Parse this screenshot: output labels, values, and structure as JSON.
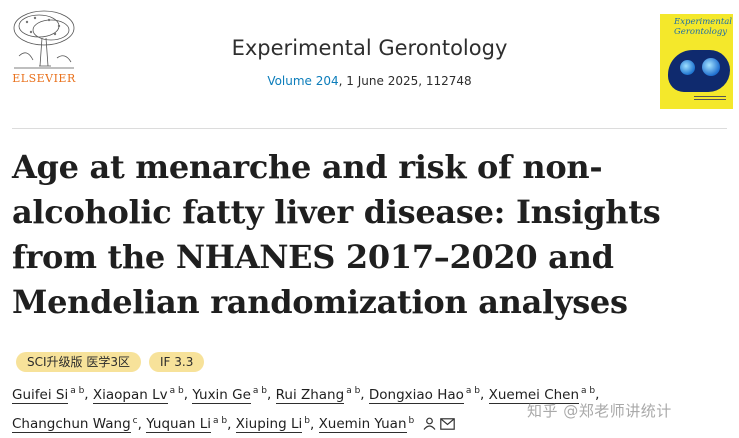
{
  "publisher": {
    "name": "ELSEVIER"
  },
  "journal": {
    "title": "Experimental Gerontology",
    "volume_label": "Volume 204",
    "issue_info": ", 1 June 2025, 112748"
  },
  "cover": {
    "title_line1": "Experimental",
    "title_line2": "Gerontology"
  },
  "article": {
    "title": "Age at menarche and risk of non-alcoholic fatty liver disease: Insights from the NHANES 2017–2020 and Mendelian randomization analyses"
  },
  "badges": [
    "SCI升级版 医学3区",
    "IF 3.3"
  ],
  "authors": [
    {
      "name": "Guifei Si",
      "aff": "a b"
    },
    {
      "name": "Xiaopan Lv",
      "aff": "a b"
    },
    {
      "name": "Yuxin Ge",
      "aff": "a b"
    },
    {
      "name": "Rui Zhang",
      "aff": "a b"
    },
    {
      "name": "Dongxiao Hao",
      "aff": "a b"
    },
    {
      "name": "Xuemei Chen",
      "aff": "a b"
    },
    {
      "name": "Changchun Wang",
      "aff": "c"
    },
    {
      "name": "Yuquan Li",
      "aff": "a b"
    },
    {
      "name": "Xiuping Li",
      "aff": "b"
    },
    {
      "name": "Xuemin Yuan",
      "aff": "b"
    }
  ],
  "watermark": "知乎 @郑老师讲统计",
  "icons": {
    "author_icon": "person-icon",
    "email_icon": "envelope-icon"
  },
  "colors": {
    "link": "#0c7dbb",
    "badge": "#f7e29a",
    "publisher": "#e9711c",
    "cover": "#f4e82b"
  }
}
